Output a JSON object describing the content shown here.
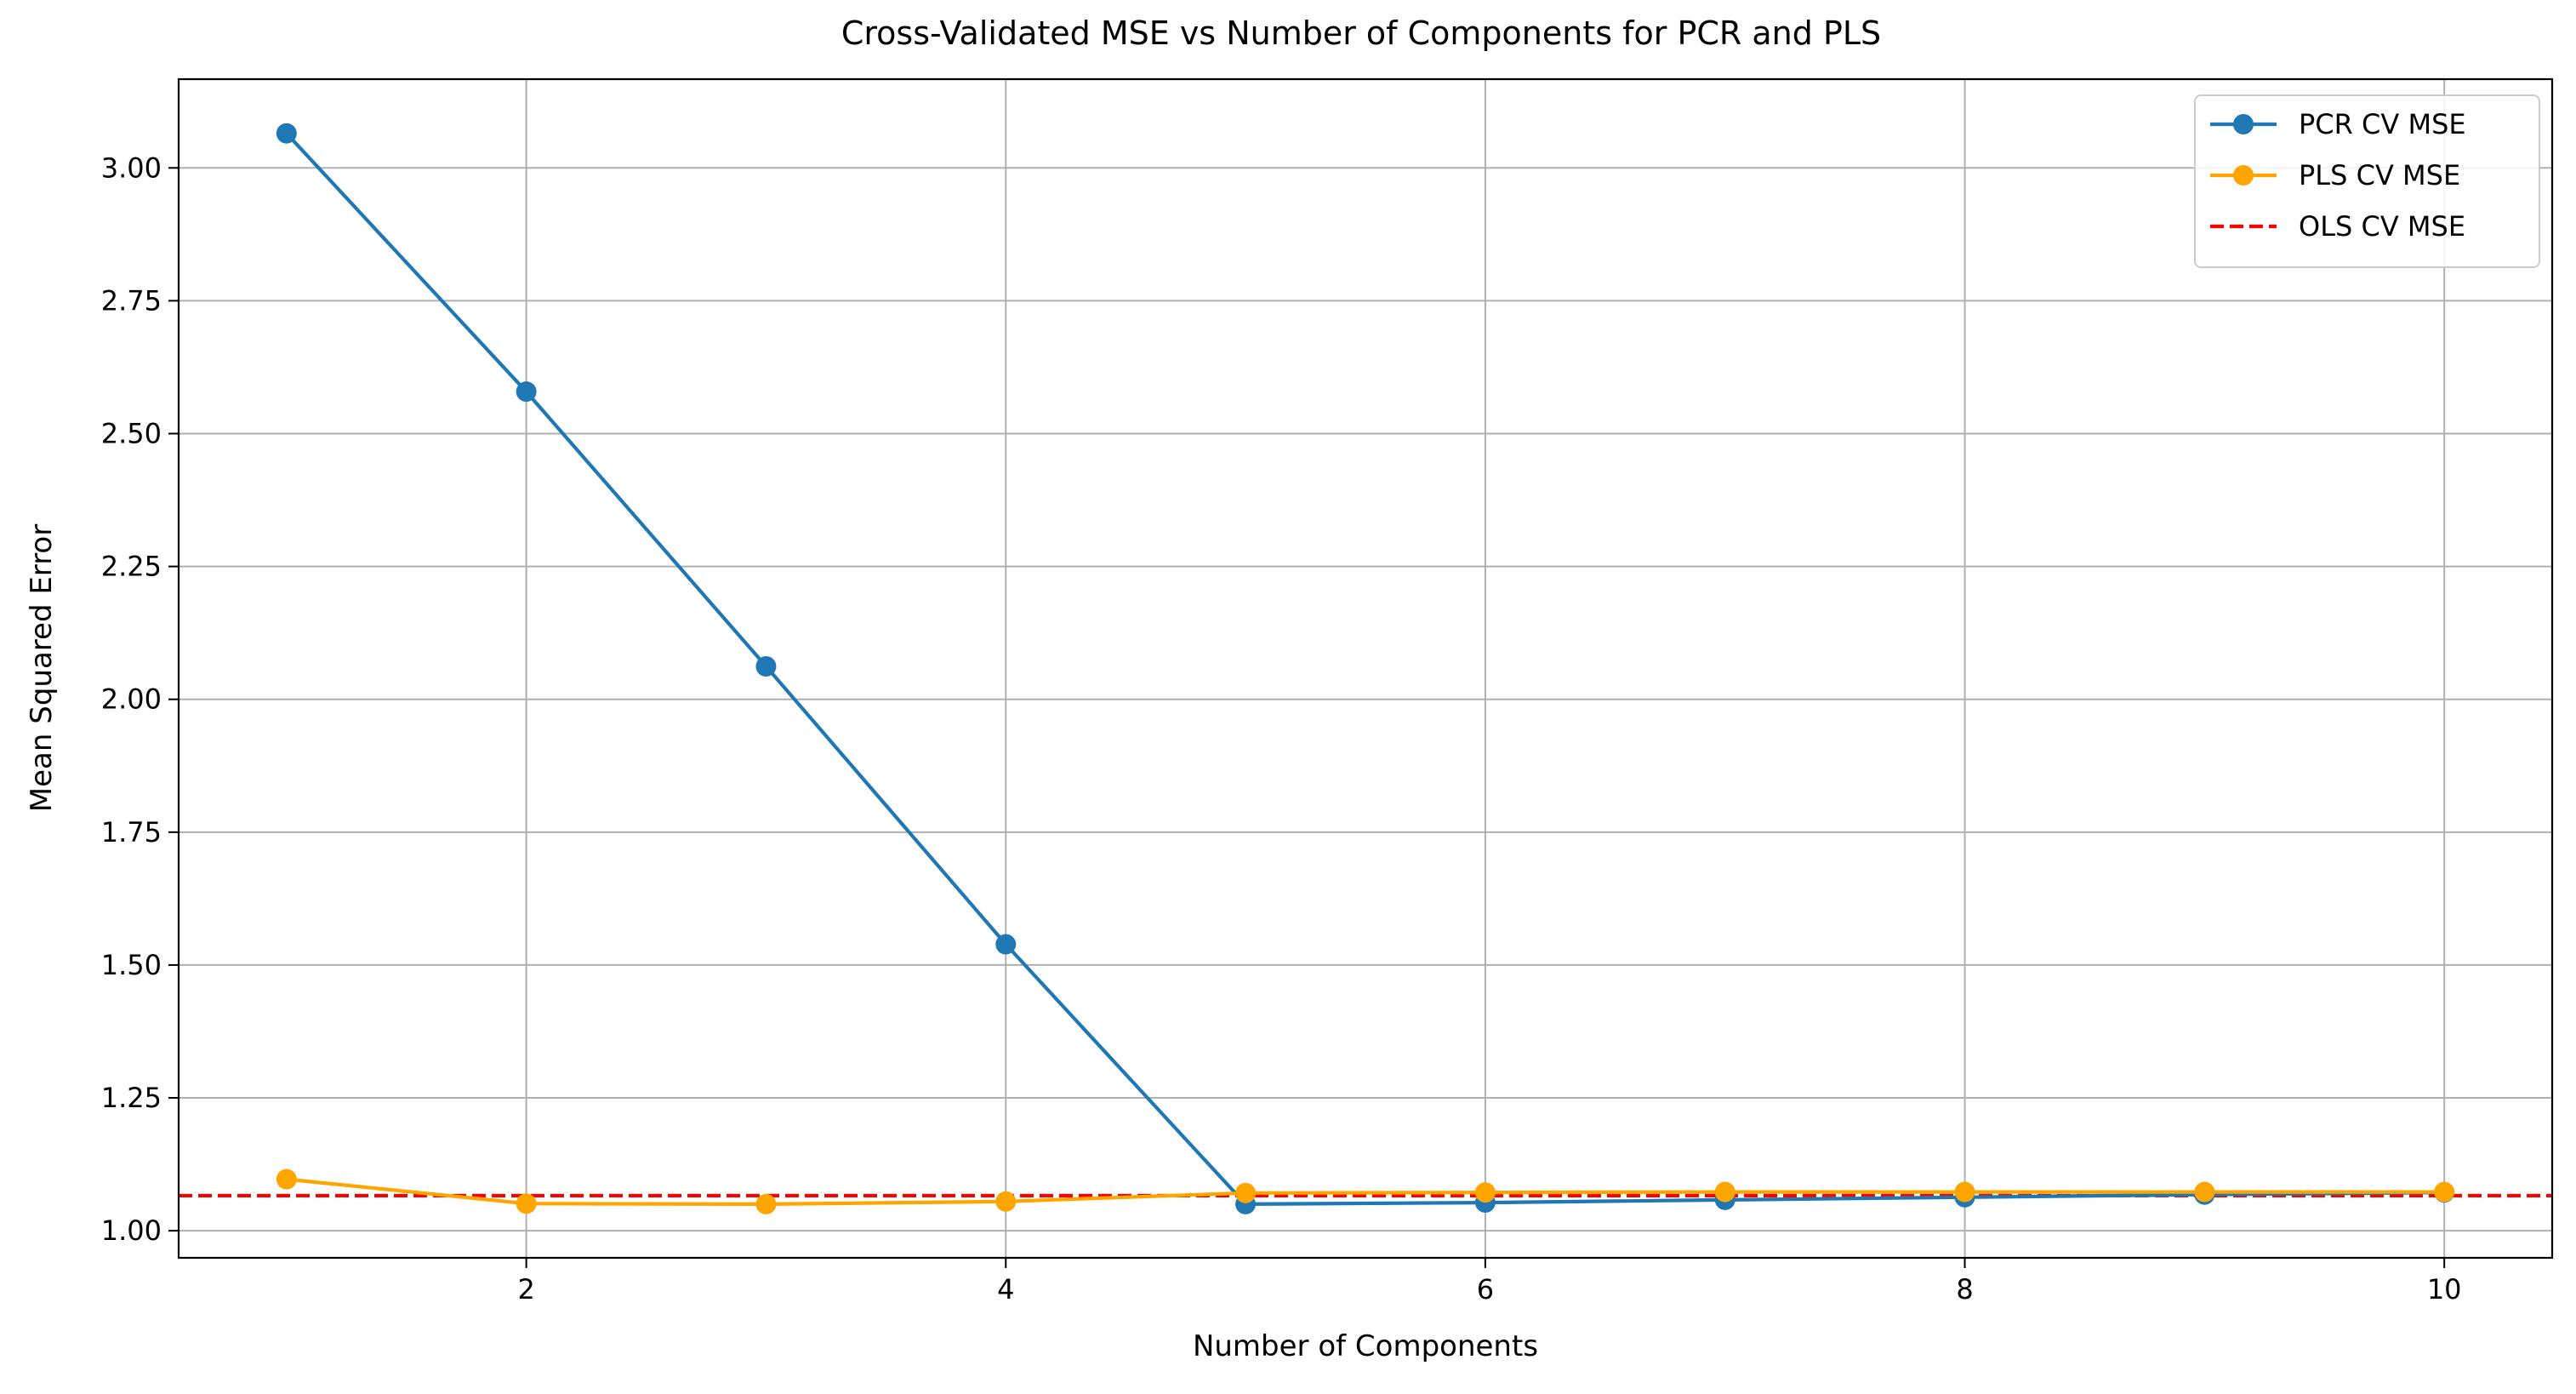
{
  "chart_data": {
    "type": "line",
    "title": "Cross-Validated MSE vs Number of Components for PCR and PLS",
    "xlabel": "Number of Components",
    "ylabel": "Mean Squared Error",
    "x": [
      1,
      2,
      3,
      4,
      5,
      6,
      7,
      8,
      9,
      10
    ],
    "xlim": [
      0.55,
      10.45
    ],
    "ylim": [
      0.949,
      3.167
    ],
    "xticks": [
      2,
      4,
      6,
      8,
      10
    ],
    "xtick_labels": [
      "2",
      "4",
      "6",
      "8",
      "10"
    ],
    "yticks": [
      1.0,
      1.25,
      1.5,
      1.75,
      2.0,
      2.25,
      2.5,
      2.75,
      3.0
    ],
    "ytick_labels": [
      "1.00",
      "1.25",
      "1.50",
      "1.75",
      "2.00",
      "2.25",
      "2.50",
      "2.75",
      "3.00"
    ],
    "grid": true,
    "legend_position": "top-right",
    "series": [
      {
        "name": "PCR CV MSE",
        "color": "#1f77b4",
        "style": "solid",
        "marker": "circle",
        "values": [
          3.065,
          2.579,
          2.062,
          1.539,
          1.05,
          1.053,
          1.058,
          1.063,
          1.068,
          1.072
        ]
      },
      {
        "name": "PLS CV MSE",
        "color": "#ffa500",
        "style": "solid",
        "marker": "circle",
        "values": [
          1.097,
          1.051,
          1.05,
          1.055,
          1.071,
          1.072,
          1.073,
          1.073,
          1.073,
          1.073
        ]
      }
    ],
    "hlines": [
      {
        "name": "OLS CV MSE",
        "color": "#ff0000",
        "style": "dashed",
        "y": 1.066
      }
    ]
  }
}
